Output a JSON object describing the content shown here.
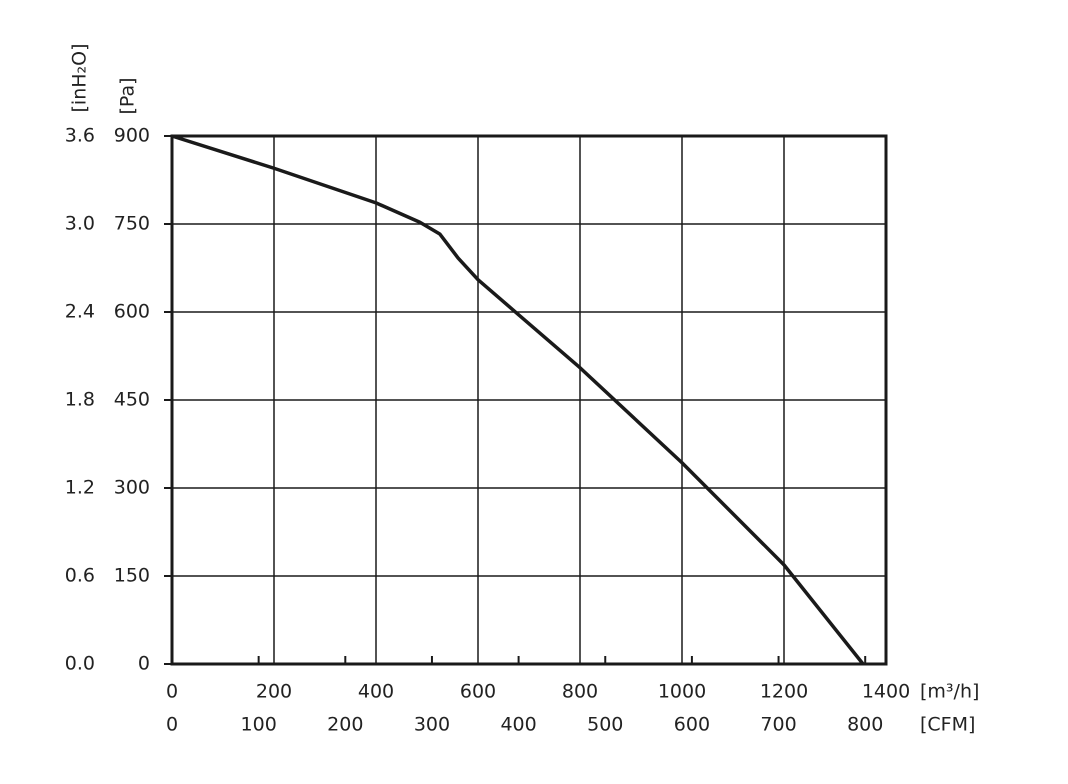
{
  "chart_data": {
    "type": "line",
    "x_label": "[m³/h]",
    "x2_label": "[CFM]",
    "y_label": "[Pa]",
    "y2_label": "[inH₂O]",
    "x": [
      0,
      200,
      400,
      486,
      525,
      561,
      600,
      676,
      800,
      1000,
      1200,
      1355
    ],
    "series": [
      {
        "color": "#1a1a1a",
        "values": [
          900,
          845,
          786,
          753,
          733,
          692,
          655,
          598,
          505,
          343,
          169,
          0
        ]
      }
    ],
    "xlim": [
      0,
      1400
    ],
    "xticks": [
      0,
      200,
      400,
      600,
      800,
      1000,
      1200,
      1400
    ],
    "x2lim": [
      0,
      824
    ],
    "x2ticks": [
      0,
      100,
      200,
      300,
      400,
      500,
      600,
      700,
      800
    ],
    "ylim": [
      0,
      900
    ],
    "yticks": [
      0,
      150,
      300,
      450,
      600,
      750,
      900
    ],
    "y2lim": [
      0,
      3.6
    ],
    "y2ticks": [
      {
        "value": 0,
        "label": "0.0"
      },
      0.6,
      1.2,
      1.8,
      2.4,
      {
        "value": 3,
        "label": "3.0"
      },
      3.6
    ],
    "grid": true
  }
}
